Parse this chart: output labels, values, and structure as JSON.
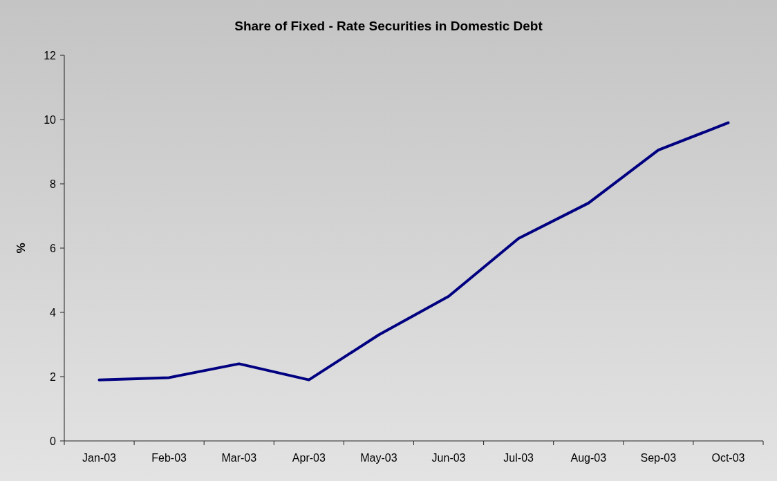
{
  "chart_data": {
    "type": "line",
    "title": "Share of Fixed - Rate Securities in Domestic Debt",
    "ylabel": "%",
    "categories": [
      "Jan-03",
      "Feb-03",
      "Mar-03",
      "Apr-03",
      "May-03",
      "Jun-03",
      "Jul-03",
      "Aug-03",
      "Sep-03",
      "Oct-03"
    ],
    "series": [
      {
        "color": "#000080",
        "values": [
          1.9,
          1.97,
          2.4,
          1.9,
          3.3,
          4.5,
          6.3,
          7.4,
          9.05,
          9.9
        ]
      }
    ],
    "ylim": [
      0,
      12
    ],
    "yticks": [
      0,
      2,
      4,
      6,
      8,
      10,
      12
    ],
    "grid": false,
    "marker": "none",
    "line_style": "solid"
  }
}
